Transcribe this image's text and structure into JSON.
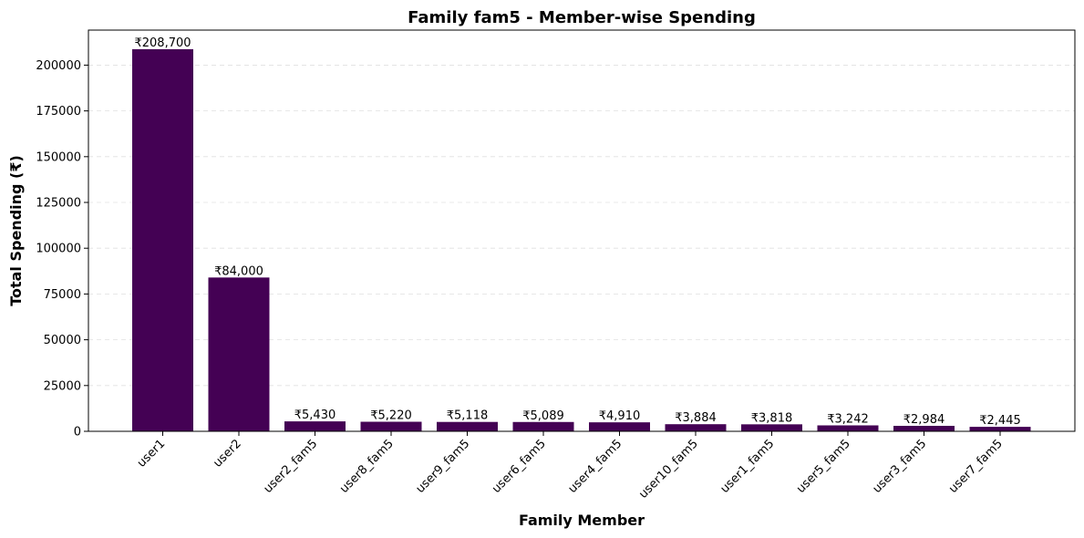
{
  "chart_data": {
    "type": "bar",
    "title": "Family fam5 - Member-wise Spending",
    "xlabel": "Family Member",
    "ylabel": "Total Spending (₹)",
    "categories": [
      "user1",
      "user2",
      "user2_fam5",
      "user8_fam5",
      "user9_fam5",
      "user6_fam5",
      "user4_fam5",
      "user10_fam5",
      "user1_fam5",
      "user5_fam5",
      "user3_fam5",
      "user7_fam5"
    ],
    "values": [
      208700,
      84000,
      5430,
      5220,
      5118,
      5089,
      4910,
      3884,
      3818,
      3242,
      2984,
      2445
    ],
    "data_labels": [
      "₹208,700",
      "₹84,000",
      "₹5,430",
      "₹5,220",
      "₹5,118",
      "₹5,089",
      "₹4,910",
      "₹3,884",
      "₹3,818",
      "₹3,242",
      "₹2,984",
      "₹2,445"
    ],
    "yticks": [
      0,
      25000,
      50000,
      75000,
      100000,
      125000,
      150000,
      175000,
      200000
    ],
    "ylim": [
      0,
      219135
    ],
    "grid": "y-dashed",
    "bar_color": "#440154"
  }
}
